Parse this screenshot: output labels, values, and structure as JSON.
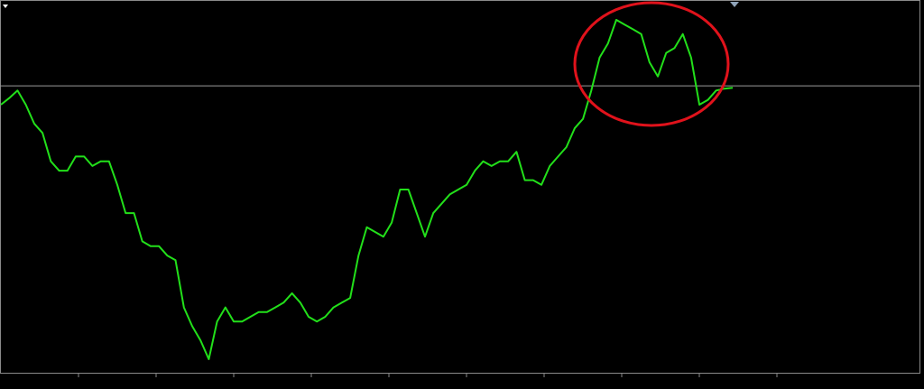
{
  "chart_data": {
    "type": "line",
    "color": "#22e01a",
    "values": [
      306,
      313,
      321,
      306,
      286,
      276,
      246,
      236,
      236,
      251,
      251,
      241,
      246,
      246,
      221,
      191,
      191,
      161,
      156,
      156,
      146,
      141,
      91,
      71,
      56,
      36,
      76,
      91,
      76,
      76,
      81,
      86,
      86,
      91,
      96,
      106,
      96,
      81,
      76,
      81,
      91,
      96,
      101,
      146,
      176,
      171,
      166,
      181,
      216,
      216,
      191,
      166,
      191,
      201,
      211,
      216,
      221,
      236,
      246,
      241,
      246,
      246,
      256,
      226,
      226,
      221,
      241,
      251,
      261,
      281,
      291,
      321,
      356,
      371,
      396,
      391,
      386,
      381,
      351,
      336,
      361,
      366,
      381,
      356,
      306,
      311,
      321,
      323,
      324
    ],
    "level": 326,
    "level_color": "#9a9a9a"
  }
}
